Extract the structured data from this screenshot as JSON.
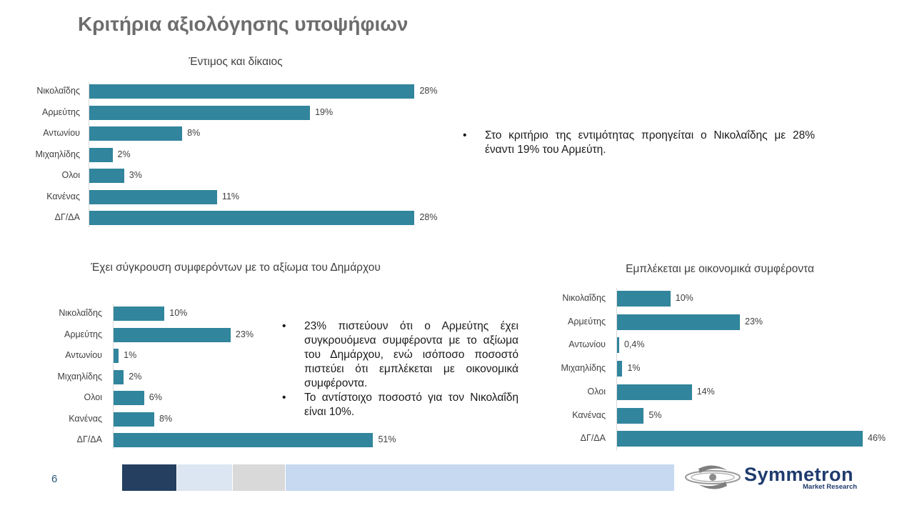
{
  "page": {
    "title": "Κριτήρια αξιολόγησης υποψήφιων",
    "page_number": "6",
    "logo": {
      "name": "Symmetron",
      "subtitle": "Market Research"
    },
    "footer_colors": [
      "#243f60",
      "#dce6f2",
      "#d9d9d9",
      "#c6d9f0"
    ]
  },
  "chart_data": [
    {
      "type": "bar",
      "orientation": "horizontal",
      "title": "Έντιμος και δίκαιος",
      "categories": [
        "Νικολαΐδης",
        "Αρμεύτης",
        "Αντωνίου",
        "Μιχαηλίδης",
        "Ολοι",
        "Κανένας",
        "ΔΓ/ΔΑ"
      ],
      "values": [
        28,
        19,
        8,
        2,
        3,
        11,
        28
      ],
      "value_labels": [
        "28%",
        "19%",
        "8%",
        "2%",
        "3%",
        "11%",
        "28%"
      ],
      "unit": "%",
      "xlim": [
        0,
        30
      ],
      "color": "#31859c",
      "grid": false
    },
    {
      "type": "bar",
      "orientation": "horizontal",
      "title": "Έχει σύγκρουση συμφερόντων με το αξίωμα του Δημάρχου",
      "categories": [
        "Νικολαΐδης",
        "Αρμεύτης",
        "Αντωνίου",
        "Μιχαηλίδης",
        "Ολοι",
        "Κανένας",
        "ΔΓ/ΔΑ"
      ],
      "values": [
        10,
        23,
        1,
        2,
        6,
        8,
        51
      ],
      "value_labels": [
        "10%",
        "23%",
        "1%",
        "2%",
        "6%",
        "8%",
        "51%"
      ],
      "unit": "%",
      "xlim": [
        0,
        55
      ],
      "color": "#31859c",
      "grid": false
    },
    {
      "type": "bar",
      "orientation": "horizontal",
      "title": "Εμπλέκεται με οικονομικά συμφέροντα",
      "categories": [
        "Νικολαΐδης",
        "Αρμεύτης",
        "Αντωνίου",
        "Μιχαηλίδης",
        "Ολοι",
        "Κανένας",
        "ΔΓ/ΔΑ"
      ],
      "values": [
        10,
        23,
        0.4,
        1,
        14,
        5,
        46
      ],
      "value_labels": [
        "10%",
        "23%",
        "0,4%",
        "1%",
        "14%",
        "5%",
        "46%"
      ],
      "unit": "%",
      "xlim": [
        0,
        46
      ],
      "color": "#31859c",
      "grid": false
    }
  ],
  "notes": {
    "chart1": [
      "Στο κριτήριο της εντιμότητας προηγείται ο Νικολαΐδης με 28% έναντι 19% του Αρμεύτη."
    ],
    "chart2": [
      "23% πιστεύουν ότι ο Αρμεύτης έχει συγκρουόμενα συμφέροντα με το αξίωμα του Δημάρχου, ενώ ισόποσο ποσοστό πιστεύει ότι εμπλέκεται με οικονομικά συμφέροντα.",
      "Το αντίστοιχο ποσοστό για τον Νικολαΐδη είναι 10%."
    ]
  }
}
